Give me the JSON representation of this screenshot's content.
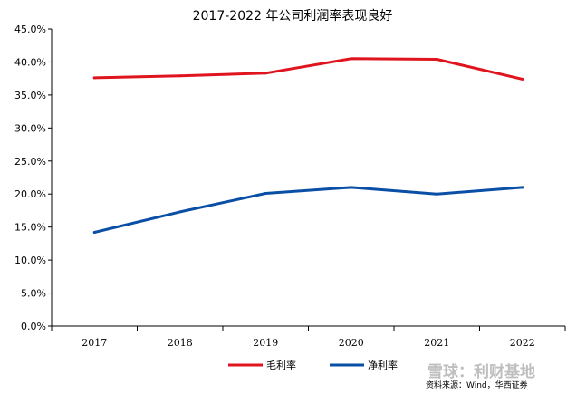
{
  "chart_data": {
    "type": "line",
    "title": "2017-2022 年公司利润率表现良好",
    "categories": [
      "2017",
      "2018",
      "2019",
      "2020",
      "2021",
      "2022"
    ],
    "series": [
      {
        "name": "毛利率",
        "color": "#e0141e",
        "values": [
          37.6,
          37.9,
          38.3,
          40.5,
          40.4,
          37.4
        ]
      },
      {
        "name": "净利率",
        "color": "#0a4fa6",
        "values": [
          14.2,
          17.3,
          20.1,
          21.0,
          20.0,
          21.0
        ]
      }
    ],
    "ylim": [
      0,
      45
    ],
    "yticks": [
      0,
      5,
      10,
      15,
      20,
      25,
      30,
      35,
      40,
      45
    ],
    "ytick_labels": [
      "0.0%",
      "5.0%",
      "10.0%",
      "15.0%",
      "20.0%",
      "25.0%",
      "30.0%",
      "35.0%",
      "40.0%",
      "45.0%"
    ],
    "xlabel": "",
    "ylabel": "",
    "grid": false,
    "legend_position": "bottom-center",
    "source": "资料来源：Wind，华西证券"
  },
  "watermark": "雪球：利财基地"
}
